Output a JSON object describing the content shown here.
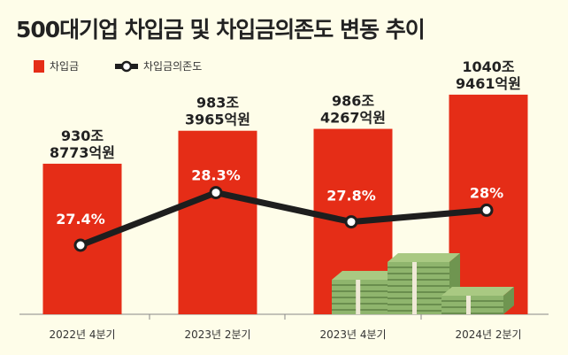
{
  "chart_data": {
    "type": "bar+line",
    "title": "500대기업 차입금 및 차입금의존도 변동 추이",
    "categories": [
      "2022년 4분기",
      "2023년 2분기",
      "2023년 4분기",
      "2024년 2분기"
    ],
    "series": [
      {
        "name": "차입금",
        "kind": "bar",
        "unit": "억원",
        "values": [
          9308773,
          9833965,
          9864267,
          10409461
        ],
        "labels": [
          [
            "930조",
            "8773억원"
          ],
          [
            "983조",
            "3965억원"
          ],
          [
            "986조",
            "4267억원"
          ],
          [
            "1040조",
            "9461억원"
          ]
        ]
      },
      {
        "name": "차입금의존도",
        "kind": "line",
        "unit": "%",
        "values": [
          27.4,
          28.3,
          27.8,
          28
        ],
        "labels": [
          "27.4%",
          "28.3%",
          "27.8%",
          "28%"
        ]
      }
    ],
    "legend_placement": "top-left",
    "grid": false
  },
  "colors": {
    "bar": "#e52d17",
    "line": "#1e1e1e",
    "background": "#fefde9",
    "money": "#8fb56d"
  }
}
